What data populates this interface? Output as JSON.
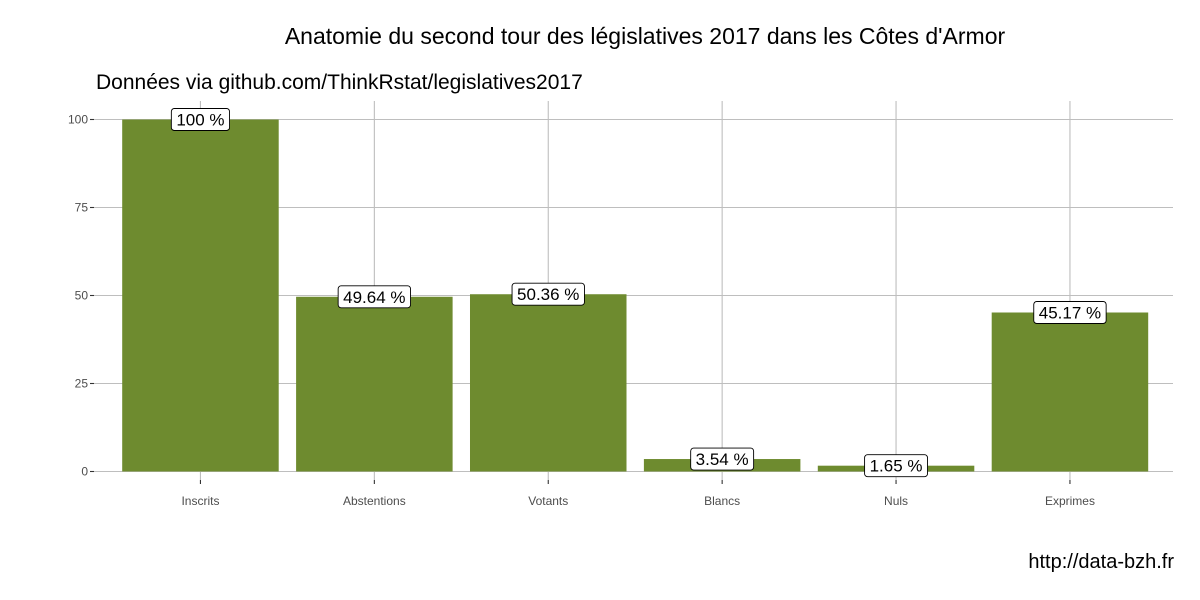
{
  "chart_data": {
    "type": "bar",
    "title": "Anatomie du second tour des législatives 2017 dans les Côtes d'Armor",
    "subtitle": "Données via github.com/ThinkRstat/legislatives2017",
    "caption": "http://data-bzh.fr",
    "xlabel": "",
    "ylabel": "",
    "categories": [
      "Inscrits",
      "Abstentions",
      "Votants",
      "Blancs",
      "Nuls",
      "Exprimes"
    ],
    "values": [
      100,
      49.64,
      50.36,
      3.54,
      1.65,
      45.17
    ],
    "data_labels": [
      "100 %",
      "49.64 %",
      "50.36 %",
      "3.54 %",
      "1.65 %",
      "45.17 %"
    ],
    "ylim": [
      0,
      100
    ],
    "yticks": [
      0,
      25,
      50,
      75,
      100
    ],
    "ytick_labels": [
      "0",
      "25",
      "50",
      "75",
      "100"
    ],
    "grid": true,
    "legend": "none",
    "bar_color": "#6e8b2f",
    "grid_color": "#bebebe"
  }
}
